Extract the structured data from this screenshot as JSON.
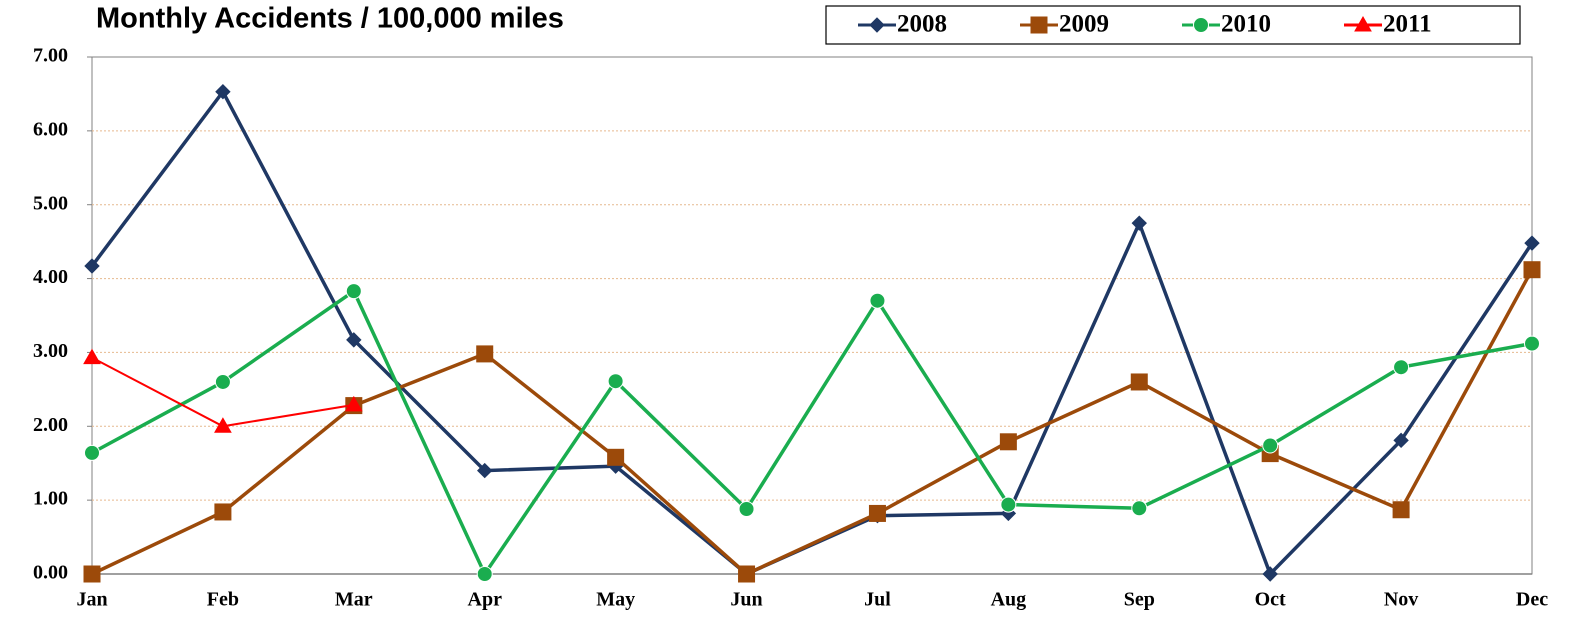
{
  "chart_data": {
    "type": "line",
    "title": "Monthly Accidents / 100,000 miles",
    "categories": [
      "Jan",
      "Feb",
      "Mar",
      "Apr",
      "May",
      "Jun",
      "Jul",
      "Aug",
      "Sep",
      "Oct",
      "Nov",
      "Dec"
    ],
    "series": [
      {
        "name": "2008",
        "color": "#1f3864",
        "marker": "diamond",
        "values": [
          4.17,
          6.53,
          3.17,
          1.4,
          1.46,
          0,
          0.79,
          0.82,
          4.75,
          0,
          1.81,
          4.48
        ]
      },
      {
        "name": "2009",
        "color": "#9c4a0a",
        "marker": "square",
        "values": [
          0,
          0.84,
          2.28,
          2.98,
          1.58,
          0,
          0.82,
          1.79,
          2.6,
          1.63,
          0.87,
          4.12
        ]
      },
      {
        "name": "2010",
        "color": "#1aad4f",
        "marker": "circle",
        "values": [
          1.64,
          2.6,
          3.83,
          0,
          2.61,
          0.88,
          3.7,
          0.94,
          0.89,
          1.74,
          2.8,
          3.12
        ]
      },
      {
        "name": "2011",
        "color": "#ff0000",
        "marker": "triangle",
        "values": [
          2.93,
          2.0,
          2.29,
          null,
          null,
          null,
          null,
          null,
          null,
          null,
          null,
          null
        ]
      }
    ],
    "ylim": [
      0,
      7
    ],
    "yticks": [
      {
        "value": 0,
        "label": "0.00"
      },
      {
        "value": 1,
        "label": "1.00"
      },
      {
        "value": 2,
        "label": "2.00"
      },
      {
        "value": 3,
        "label": "3.00"
      },
      {
        "value": 4,
        "label": "4.00"
      },
      {
        "value": 5,
        "label": "5.00"
      },
      {
        "value": 6,
        "label": "6.00"
      },
      {
        "value": 7,
        "label": "7.00"
      }
    ],
    "grid": true,
    "legend": "top-right"
  }
}
